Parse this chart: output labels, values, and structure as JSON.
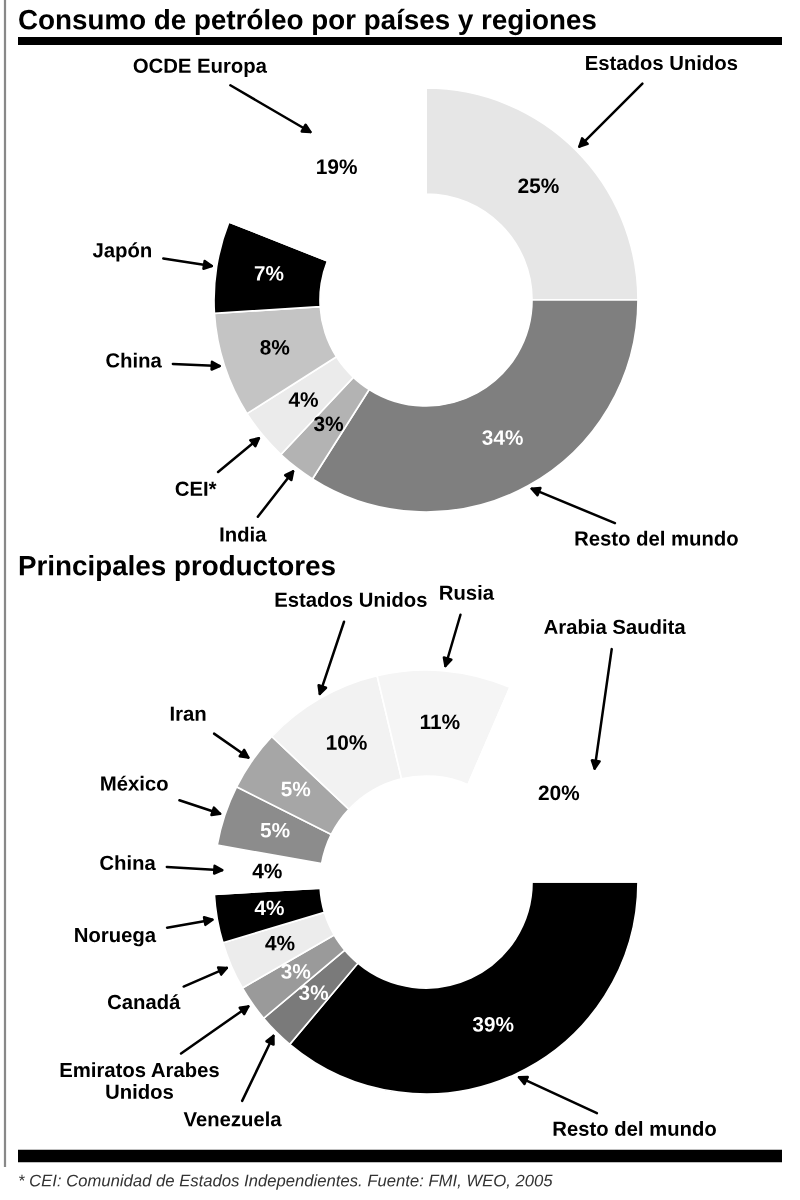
{
  "chart_data": [
    {
      "type": "donut",
      "title": "Consumo de petróleo por países y regiones",
      "categories": [
        "Estados Unidos",
        "Resto del mundo",
        "India",
        "CEI*",
        "China",
        "Japón",
        "OCDE Europa"
      ],
      "values": [
        25,
        34,
        3,
        4,
        8,
        7,
        19
      ],
      "colors": [
        "#e6e6e6",
        "#7f7f7f",
        "#b3b3b3",
        "#ebebeb",
        "#c4c4c4",
        "#000000",
        "#ffffff"
      ],
      "value_labels": [
        "25%",
        "34%",
        "3%",
        "4%",
        "8%",
        "7%",
        "19%"
      ]
    },
    {
      "type": "donut",
      "title": "Principales productores",
      "categories": [
        "Resto del mundo",
        "Venezuela",
        "Emiratos Arabes\nUnidos",
        "Canadá",
        "Noruega",
        "China",
        "México",
        "Iran",
        "Estados Unidos",
        "Rusia",
        "Arabia Saudita"
      ],
      "values": [
        39,
        3,
        3,
        4,
        4,
        4,
        5,
        5,
        10,
        11,
        20
      ],
      "colors": [
        "#000000",
        "#7a7a7a",
        "#9a9a9a",
        "#ececec",
        "#000000",
        "#ffffff",
        "#8c8c8c",
        "#a6a6a6",
        "#f2f2f2",
        "#f5f5f5",
        "#ffffff"
      ],
      "value_labels": [
        "39%",
        "3%",
        "3%",
        "4%",
        "4%",
        "4%",
        "5%",
        "5%",
        "10%",
        "11%",
        "20%"
      ],
      "annotations": [
        "* CEI: Comunidad de Estados Independientes. Fuente: FMI, WEO, 2005"
      ]
    }
  ]
}
